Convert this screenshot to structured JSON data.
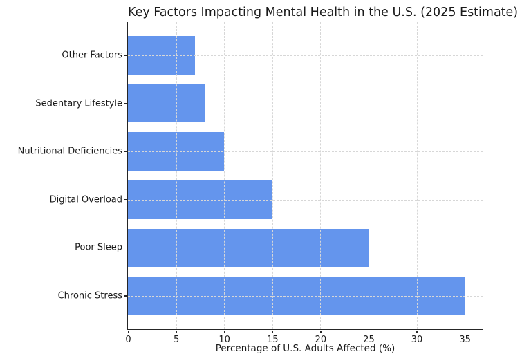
{
  "title": "Key Factors Impacting Mental Health in the U.S. (2025 Estimate)",
  "chart_data": {
    "type": "bar",
    "orientation": "horizontal",
    "title": "Key Factors Impacting Mental Health in the U.S. (2025 Estimate)",
    "xlabel": "Percentage of U.S. Adults Affected (%)",
    "ylabel": "",
    "categories": [
      "Other Factors",
      "Sedentary Lifestyle",
      "Nutritional Deficiencies",
      "Digital Overload",
      "Poor Sleep",
      "Chronic Stress"
    ],
    "values": [
      7,
      8,
      10,
      15,
      25,
      35
    ],
    "xticks": [
      0,
      5,
      10,
      15,
      20,
      25,
      30,
      35
    ],
    "xlim": [
      0,
      36.75
    ],
    "grid": true,
    "grid_style": "dashed",
    "legend": "none",
    "colors": {
      "bar": "#6495ED",
      "grid": "#d7d7d7",
      "axis": "#262626",
      "text": "#1a1a1a",
      "background": "#ffffff"
    }
  }
}
